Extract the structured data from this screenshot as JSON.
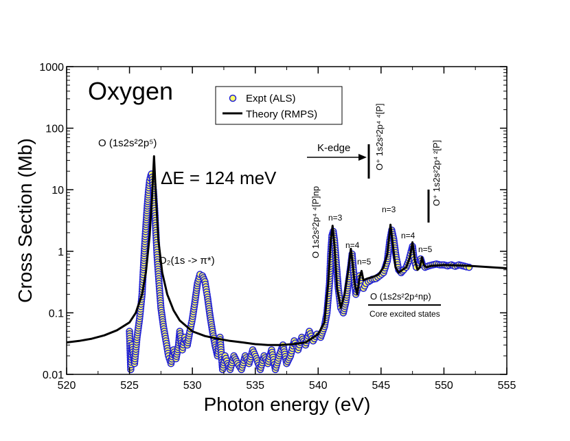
{
  "chart_data": {
    "type": "scatter+line",
    "title": "Oxygen",
    "xlabel": "Photon energy (eV)",
    "ylabel": "Cross Section (Mb)",
    "xlim": [
      520,
      555
    ],
    "ylim": [
      0.01,
      1000
    ],
    "yscale": "log",
    "x_ticks": [
      520,
      525,
      530,
      535,
      540,
      545,
      550,
      555
    ],
    "x_tick_labels": [
      "520",
      "525",
      "530",
      "535",
      "540",
      "545",
      "550",
      "555"
    ],
    "y_ticks": [
      0.01,
      0.1,
      1,
      10,
      100,
      1000
    ],
    "y_tick_labels": [
      "0.01",
      "0.1",
      "1",
      "10",
      "100",
      "1000"
    ],
    "legend": {
      "position": "top-center",
      "entries": [
        {
          "label": "Expt (ALS)",
          "marker": "circle",
          "fill": "#ffff66",
          "edge": "#1f1fd6"
        },
        {
          "label": "Theory (RMPS)",
          "marker": "line",
          "color": "#000000"
        }
      ]
    },
    "series": [
      {
        "name": "Theory (RMPS)",
        "style": "line",
        "color": "#000000",
        "x": [
          520,
          521,
          522,
          523,
          524,
          525,
          525.5,
          526,
          526.3,
          526.6,
          526.8,
          526.95,
          527.1,
          527.3,
          527.6,
          528,
          528.5,
          529,
          530,
          531,
          532,
          533,
          534,
          535,
          536,
          537,
          538,
          539,
          540,
          540.5,
          540.8,
          541.0,
          541.15,
          541.3,
          541.5,
          541.8,
          542.1,
          542.4,
          542.6,
          542.75,
          542.9,
          543.1,
          543.3,
          543.45,
          543.6,
          543.9,
          544.3,
          544.8,
          545.2,
          545.5,
          545.75,
          545.95,
          546.15,
          546.4,
          546.7,
          547.0,
          547.3,
          547.5,
          547.7,
          547.9,
          548.1,
          548.25,
          548.4,
          548.6,
          549,
          550,
          552,
          555
        ],
        "y": [
          0.033,
          0.035,
          0.038,
          0.043,
          0.052,
          0.07,
          0.1,
          0.2,
          0.45,
          1.8,
          8,
          35,
          8,
          1.5,
          0.45,
          0.2,
          0.11,
          0.075,
          0.05,
          0.042,
          0.038,
          0.035,
          0.033,
          0.031,
          0.03,
          0.03,
          0.031,
          0.033,
          0.045,
          0.07,
          0.3,
          1.5,
          2.6,
          1.2,
          0.25,
          0.12,
          0.2,
          0.5,
          1.1,
          0.6,
          0.3,
          0.2,
          0.38,
          0.48,
          0.34,
          0.36,
          0.38,
          0.42,
          0.55,
          0.9,
          2.7,
          1.2,
          0.55,
          0.45,
          0.5,
          0.55,
          0.8,
          1.4,
          0.7,
          0.5,
          0.55,
          0.8,
          0.6,
          0.55,
          0.58,
          0.6,
          0.58,
          0.53
        ]
      },
      {
        "name": "Expt (ALS)",
        "style": "scatter",
        "marker_fill": "#ffff66",
        "marker_edge": "#1f1fd6",
        "x": [
          525.0,
          525.1,
          525.2,
          525.4,
          525.6,
          525.8,
          526.0,
          526.1,
          526.2,
          526.3,
          526.4,
          526.5,
          526.6,
          526.7,
          526.75,
          526.8,
          526.9,
          527.0,
          527.1,
          527.2,
          527.35,
          527.5,
          527.7,
          527.9,
          528.1,
          528.3,
          528.5,
          528.7,
          528.9,
          529.0,
          529.2,
          529.4,
          529.6,
          529.8,
          530.0,
          530.2,
          530.4,
          530.6,
          530.8,
          531.0,
          531.2,
          531.4,
          531.6,
          531.8,
          532.0,
          532.2,
          532.4,
          532.6,
          532.8,
          533.0,
          533.3,
          533.6,
          533.9,
          534.2,
          534.5,
          534.8,
          535.1,
          535.4,
          535.7,
          536.0,
          536.3,
          536.6,
          536.9,
          537.2,
          537.5,
          537.8,
          538.1,
          538.4,
          538.7,
          539.0,
          539.3,
          539.6,
          539.9,
          540.2,
          540.5,
          540.7,
          540.9,
          541.0,
          541.1,
          541.2,
          541.3,
          541.45,
          541.6,
          541.8,
          542.0,
          542.2,
          542.4,
          542.6,
          542.7,
          542.8,
          543.0,
          543.2,
          543.3,
          543.4,
          543.6,
          543.8,
          544.0,
          544.3,
          544.6,
          544.9,
          545.2,
          545.5,
          545.7,
          545.85,
          546.0,
          546.2,
          546.4,
          546.6,
          546.8,
          547.0,
          547.2,
          547.4,
          547.5,
          547.6,
          547.8,
          548.0,
          548.15,
          548.3,
          548.5,
          548.8,
          549.1,
          549.4,
          549.7,
          550.0,
          550.3,
          550.6,
          550.9,
          551.2,
          551.5,
          551.8,
          552.0
        ],
        "y": [
          0.05,
          0.012,
          0.03,
          0.015,
          0.04,
          0.08,
          0.2,
          0.5,
          1.2,
          2.5,
          5,
          9,
          14,
          17,
          18,
          16,
          10,
          5,
          2,
          0.8,
          0.3,
          0.12,
          0.06,
          0.035,
          0.02,
          0.015,
          0.025,
          0.018,
          0.03,
          0.05,
          0.025,
          0.04,
          0.03,
          0.05,
          0.08,
          0.15,
          0.3,
          0.42,
          0.4,
          0.32,
          0.18,
          0.09,
          0.05,
          0.03,
          0.02,
          0.04,
          0.012,
          0.02,
          0.015,
          0.012,
          0.02,
          0.015,
          0.012,
          0.02,
          0.015,
          0.025,
          0.018,
          0.012,
          0.02,
          0.015,
          0.025,
          0.012,
          0.02,
          0.03,
          0.015,
          0.02,
          0.035,
          0.025,
          0.04,
          0.03,
          0.05,
          0.035,
          0.045,
          0.04,
          0.06,
          0.1,
          0.3,
          0.9,
          1.8,
          2.1,
          1.5,
          0.6,
          0.25,
          0.12,
          0.1,
          0.15,
          0.3,
          0.6,
          0.9,
          0.5,
          0.2,
          0.28,
          0.4,
          0.3,
          0.25,
          0.3,
          0.32,
          0.35,
          0.36,
          0.4,
          0.45,
          0.7,
          1.5,
          2.2,
          1.6,
          0.8,
          0.5,
          0.45,
          0.5,
          0.55,
          0.7,
          1.0,
          1.2,
          0.8,
          0.55,
          0.6,
          0.75,
          0.6,
          0.55,
          0.58,
          0.6,
          0.62,
          0.6,
          0.6,
          0.58,
          0.6,
          0.57,
          0.6,
          0.58,
          0.56,
          0.55
        ]
      }
    ],
    "annotations": [
      {
        "text": "O (1s2s²2p⁵)"
      },
      {
        "text": "ΔE = 124 meV"
      },
      {
        "text": "O₂(1s -> π*)"
      },
      {
        "text": "K-edge"
      },
      {
        "text": "O⁺ 1s2s²2p⁴ ⁴[P]"
      },
      {
        "text": "O⁺ 1s2s²2p⁴ ²[P]"
      },
      {
        "text": "O 1s2s²2p⁴ ⁴[P]np"
      },
      {
        "text": "n=3"
      },
      {
        "text": "n=4"
      },
      {
        "text": "n=5"
      },
      {
        "text": "n=3"
      },
      {
        "text": "n=4"
      },
      {
        "text": "n=5"
      },
      {
        "text": "O (1s2s²2p⁴np)"
      },
      {
        "text": "Core excited states"
      }
    ]
  }
}
